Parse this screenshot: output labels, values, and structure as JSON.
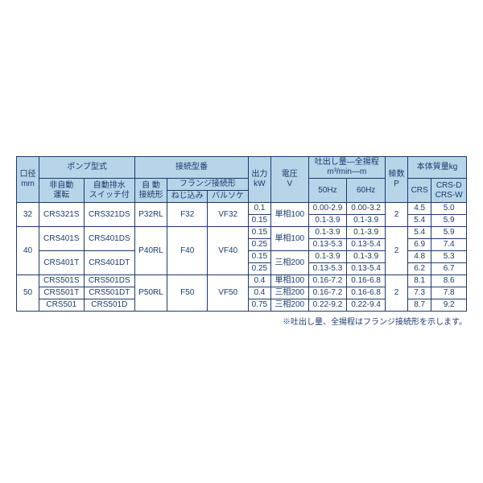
{
  "colors": {
    "header_bg": "#b8d4e8",
    "border": "#1a3a6e",
    "text": "#1a3a6e",
    "cell_bg": "#ffffff"
  },
  "headers": {
    "bore": "口径",
    "bore_unit": "mm",
    "pump_type": "ポンプ型式",
    "non_auto": "非自動\n運転",
    "auto_drain": "自動排水\nスイッチ付",
    "conn_type": "接続型番",
    "auto": "自 動\n接続形",
    "flange": "フランジ接続形",
    "screw": "ねじ込み",
    "socket": "バルソケ",
    "output": "出力",
    "output_unit": "kW",
    "voltage": "電圧",
    "voltage_unit": "V",
    "discharge": "吐出し量―全揚程",
    "discharge_unit": "m³/min―m",
    "hz50": "50Hz",
    "hz60": "60Hz",
    "poles": "極数",
    "poles_unit": "P",
    "mass": "本体質量kg",
    "crs": "CRS",
    "crs_dw": "CRS-D\nCRS-W"
  },
  "rows": [
    {
      "bore": "32",
      "na": "CRS321S",
      "ad": "CRS321DS",
      "auto": "P32RL",
      "scr": "F32",
      "soc": "VF32",
      "kw": "0.1",
      "v": "単相100",
      "d50": "0.00-2.9",
      "d60": "0.00-3.2",
      "p": "2",
      "m1": "4.5",
      "m2": "5.0"
    },
    {
      "bore": "",
      "na": "",
      "ad": "",
      "auto": "",
      "scr": "",
      "soc": "",
      "kw": "0.15",
      "v": "",
      "d50": "0.1-3.9",
      "d60": "0.1-3.9",
      "p": "",
      "m1": "5.4",
      "m2": "5.9"
    },
    {
      "bore": "40",
      "na": "CRS401S",
      "ad": "CRS401DS",
      "auto": "P40RL",
      "scr": "F40",
      "soc": "VF40",
      "kw": "0.15",
      "v": "単相100",
      "d50": "0.1-3.9",
      "d60": "0.1-3.9",
      "p": "2",
      "m1": "5.4",
      "m2": "5.9"
    },
    {
      "bore": "",
      "na": "",
      "ad": "",
      "auto": "",
      "scr": "",
      "soc": "",
      "kw": "0.25",
      "v": "",
      "d50": "0.13-5.3",
      "d60": "0.13-5.4",
      "p": "",
      "m1": "6.9",
      "m2": "7.4"
    },
    {
      "bore": "",
      "na": "CRS401T",
      "ad": "CRS401DT",
      "auto": "",
      "scr": "",
      "soc": "",
      "kw": "0.15",
      "v": "三相200",
      "d50": "0.1-3.9",
      "d60": "0.1-3.9",
      "p": "",
      "m1": "4.8",
      "m2": "5.3"
    },
    {
      "bore": "",
      "na": "",
      "ad": "",
      "auto": "",
      "scr": "",
      "soc": "",
      "kw": "0.25",
      "v": "",
      "d50": "0.13-5.3",
      "d60": "0.13-5.4",
      "p": "",
      "m1": "6.2",
      "m2": "6.7"
    },
    {
      "bore": "50",
      "na": "CRS501S",
      "ad": "CRS501DS",
      "auto": "P50RL",
      "scr": "F50",
      "soc": "VF50",
      "kw": "0.4",
      "v": "単相100",
      "d50": "0.16-7.2",
      "d60": "0.16-6.8",
      "p": "2",
      "m1": "8.1",
      "m2": "8.6"
    },
    {
      "bore": "",
      "na": "CRS501T",
      "ad": "CRS501DT",
      "auto": "",
      "scr": "",
      "soc": "",
      "kw": "0.4",
      "v": "三相200",
      "d50": "0.16-7.2",
      "d60": "0.16-6.8",
      "p": "",
      "m1": "7.3",
      "m2": "7.8"
    },
    {
      "bore": "",
      "na": "CRS501",
      "ad": "CRS501D",
      "auto": "",
      "scr": "",
      "soc": "",
      "kw": "0.75",
      "v": "三相200",
      "d50": "0.22-9.2",
      "d60": "0.22-9.4",
      "p": "",
      "m1": "8.7",
      "m2": "9.2"
    }
  ],
  "note": "※吐出し量、全揚程はフランジ接続形を示します。"
}
